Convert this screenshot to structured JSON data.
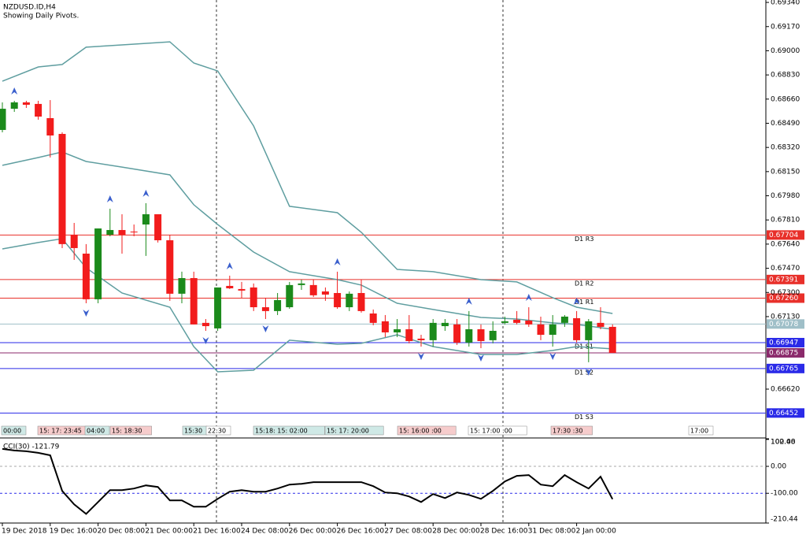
{
  "chart_data": [
    {
      "type": "candlestick",
      "title": "NZDUSD.ID,H4",
      "subtitle": "Showing Daily Pivots.",
      "categories": [
        "19 Dec 2018",
        null,
        null,
        null,
        "19 Dec 16:00",
        null,
        null,
        null,
        "20 Dec 08:00",
        null,
        null,
        null,
        "21 Dec 00:00",
        null,
        null,
        null,
        "21 Dec 16:00",
        null,
        null,
        null,
        "24 Dec 08:00",
        null,
        null,
        null,
        "26 Dec 00:00",
        null,
        null,
        null,
        "26 Dec 16:00",
        null,
        null,
        null,
        "27 Dec 08:00",
        null,
        null,
        null,
        "28 Dec 00:00",
        null,
        null,
        null,
        "28 Dec 16:00",
        null,
        null,
        null,
        "31 Dec 08:00",
        null,
        null,
        null,
        "2 Jan 00:00",
        null,
        null,
        null
      ],
      "open": [
        0.68443,
        0.68592,
        0.68637,
        0.68626,
        0.68526,
        0.68415,
        0.67706,
        0.67573,
        0.67252,
        0.67706,
        0.67739,
        0.67728,
        0.67778,
        0.6785,
        0.67667,
        0.67291,
        0.67401,
        0.67086,
        0.67047,
        0.67346,
        0.67324,
        0.67335,
        0.67196,
        0.67169,
        0.67196,
        0.67352,
        0.67352,
        0.67307,
        0.67296,
        0.67196,
        0.67296,
        0.67152,
        0.67097,
        0.67019,
        0.67041,
        0.66975,
        0.66964,
        0.67063,
        0.67075,
        0.66947,
        0.67041,
        0.66964,
        0.67086,
        0.67108,
        0.67102,
        0.67075,
        0.67002,
        0.67086,
        0.67119,
        0.66964,
        0.67086,
        0.67058
      ],
      "high": [
        0.68637,
        0.68648,
        0.68648,
        0.68648,
        0.68653,
        0.68426,
        0.67789,
        0.6764,
        0.6775,
        0.67889,
        0.6785,
        0.67778,
        0.67928,
        0.6785,
        0.67706,
        0.67446,
        0.67446,
        0.67113,
        0.67335,
        0.67418,
        0.67374,
        0.67363,
        0.67263,
        0.67296,
        0.67374,
        0.6739,
        0.6739,
        0.67335,
        0.67446,
        0.67307,
        0.6739,
        0.6718,
        0.67141,
        0.67113,
        0.67141,
        0.67002,
        0.67113,
        0.67113,
        0.67113,
        0.67169,
        0.67075,
        0.67097,
        0.6713,
        0.67169,
        0.67196,
        0.6713,
        0.67141,
        0.67141,
        0.67169,
        0.67113,
        0.67196,
        0.67075
      ],
      "low": [
        0.68426,
        0.6857,
        0.68598,
        0.68515,
        0.68249,
        0.67612,
        0.67529,
        0.67224,
        0.67224,
        0.67695,
        0.67573,
        0.67695,
        0.67557,
        0.67651,
        0.67241,
        0.67224,
        0.67075,
        0.6703,
        0.6703,
        0.67324,
        0.67263,
        0.67169,
        0.67113,
        0.67141,
        0.67185,
        0.67318,
        0.67268,
        0.67241,
        0.67185,
        0.67169,
        0.67158,
        0.67069,
        0.66986,
        0.66986,
        0.66942,
        0.66919,
        0.66919,
        0.6703,
        0.66931,
        0.66919,
        0.66908,
        0.66942,
        0.67075,
        0.67075,
        0.67058,
        0.66964,
        0.66919,
        0.67058,
        0.66947,
        0.66809,
        0.67041,
        0.66875
      ],
      "close": [
        0.68592,
        0.68637,
        0.6862,
        0.68537,
        0.68404,
        0.6764,
        0.67612,
        0.67252,
        0.6775,
        0.67739,
        0.67706,
        0.67723,
        0.6785,
        0.67667,
        0.67291,
        0.67401,
        0.67075,
        0.67063,
        0.67335,
        0.67329,
        0.67313,
        0.67196,
        0.67169,
        0.67246,
        0.67352,
        0.67363,
        0.6728,
        0.67285,
        0.67196,
        0.67291,
        0.67169,
        0.67086,
        0.67019,
        0.67041,
        0.66958,
        0.66964,
        0.67086,
        0.67086,
        0.66947,
        0.67041,
        0.66958,
        0.6703,
        0.67097,
        0.67086,
        0.67075,
        0.67002,
        0.67075,
        0.6713,
        0.66964,
        0.67097,
        0.67058,
        0.66875
      ],
      "up_color": "#1b8a1b",
      "down_color": "#f21c1c",
      "bands": {
        "color": "#5f9ea0",
        "x": [
          0,
          3,
          5,
          7,
          10,
          14,
          16,
          18,
          21,
          24,
          28,
          30,
          33,
          36,
          40,
          43,
          46,
          48,
          51
        ],
        "series": [
          {
            "values": [
              0.68786,
              0.68886,
              0.68903,
              0.69025,
              0.69041,
              0.69063,
              0.68914,
              0.68858,
              0.68471,
              0.67906,
              0.67861,
              0.67723,
              0.67462,
              0.67446,
              0.6739,
              0.67374,
              0.67263,
              0.67196,
              0.67152
            ]
          },
          {
            "values": [
              0.68194,
              0.68249,
              0.68288,
              0.68221,
              0.68182,
              0.68127,
              0.67917,
              0.67778,
              0.67584,
              0.67446,
              0.6739,
              0.67352,
              0.67224,
              0.6718,
              0.67124,
              0.67113,
              0.67086,
              0.67075,
              0.67041
            ]
          },
          {
            "values": [
              0.67606,
              0.67651,
              0.67678,
              0.67473,
              0.67296,
              0.67196,
              0.66919,
              0.66742,
              0.66753,
              0.66964,
              0.66936,
              0.66942,
              0.67002,
              0.66919,
              0.66864,
              0.66864,
              0.66892,
              0.66919,
              0.66903
            ]
          }
        ]
      },
      "fractals_up": [
        1,
        9,
        12,
        19,
        28,
        39,
        44,
        48
      ],
      "fractals_down": [
        7,
        17,
        22,
        35,
        40,
        46,
        49
      ],
      "pivots": [
        {
          "name": "D1 R3",
          "price": 0.67704,
          "color": "#e8302a"
        },
        {
          "name": "D1 R2",
          "price": 0.67391,
          "color": "#e8302a"
        },
        {
          "name": "D1 R1",
          "price": {
            "value": 0.6726,
            "label": "0.67260"
          },
          "color": "#e8302a"
        },
        {
          "name": "D1 S1",
          "price": 0.66947,
          "color": "#2a2ae8"
        },
        {
          "name": "D1 S2",
          "price": 0.66765,
          "color": "#2a2ae8"
        },
        {
          "name": "D1 S3",
          "price": 0.66452,
          "color": "#2a2ae8"
        }
      ],
      "price_lines": [
        {
          "price": 0.67078,
          "color": "#9fbfc8"
        },
        {
          "price": 0.66875,
          "color": "#8b2a6b"
        }
      ],
      "session_labels": [
        "00:00",
        "15: 17: 23:45",
        "04:00",
        "15: 18:30",
        "15:30",
        "22:30",
        "15:18: 15: 02:00",
        "15: 17: 20:00",
        "15: 16:00 :00",
        "15: 17:00 :00",
        "17:30 :30",
        "17:00"
      ],
      "ylim": [
        0.66282,
        0.69357
      ],
      "yticks": [
        {
          "value": 0.6934,
          "label": "0.69340"
        },
        {
          "value": 0.6917,
          "label": "0.69170"
        },
        {
          "value": 0.69,
          "label": "0.69000"
        },
        {
          "value": 0.6883,
          "label": "0.68830"
        },
        {
          "value": 0.6866,
          "label": "0.68660"
        },
        {
          "value": 0.6849,
          "label": "0.68490"
        },
        {
          "value": 0.6832,
          "label": "0.68320"
        },
        {
          "value": 0.6815,
          "label": "0.68150"
        },
        {
          "value": 0.6798,
          "label": "0.67980"
        },
        {
          "value": 0.6781,
          "label": "0.67810"
        },
        {
          "value": 0.6764,
          "label": "0.67640"
        },
        {
          "value": 0.6747,
          "label": "0.67470"
        },
        {
          "value": 0.673,
          "label": "0.67300"
        },
        {
          "value": 0.6713,
          "label": "0.67130"
        },
        {
          "value": 0.6662,
          "label": "0.66620"
        }
      ]
    },
    {
      "type": "line",
      "title": "CCI(30) -121.79",
      "color": "#000000",
      "values": [
        64.7,
        58.8,
        55.9,
        50.0,
        41.2,
        -91.2,
        -141.2,
        -176.5,
        -132.4,
        -88.2,
        -88.2,
        -82.4,
        -70.6,
        -76.5,
        -126.5,
        -126.5,
        -150.0,
        -150.0,
        -120.6,
        -94.1,
        -88.2,
        -94.1,
        -94.1,
        -82.4,
        -67.6,
        -64.7,
        -58.8,
        -58.8,
        -58.8,
        -58.8,
        -58.8,
        -73.5,
        -97.1,
        -100.0,
        -111.8,
        -132.4,
        -102.9,
        -117.6,
        -97.1,
        -105.9,
        -120.6,
        -91.2,
        -55.9,
        -35.3,
        -32.4,
        -67.6,
        -73.5,
        -32.4,
        -58.8,
        -82.4,
        -38.2,
        -121.79
      ],
      "level_lines": [
        {
          "value": 0,
          "color": "#aaaaaa"
        },
        {
          "value": -100,
          "color": "#2a2ae8"
        }
      ],
      "ylim": [
        -210.44,
        102.48
      ],
      "yticks": [
        102.48,
        {
          "value": 100,
          "label": "100.00"
        },
        {
          "value": 0,
          "label": "0.00"
        },
        {
          "value": -100,
          "label": "-100.00"
        },
        -210.44
      ]
    }
  ]
}
